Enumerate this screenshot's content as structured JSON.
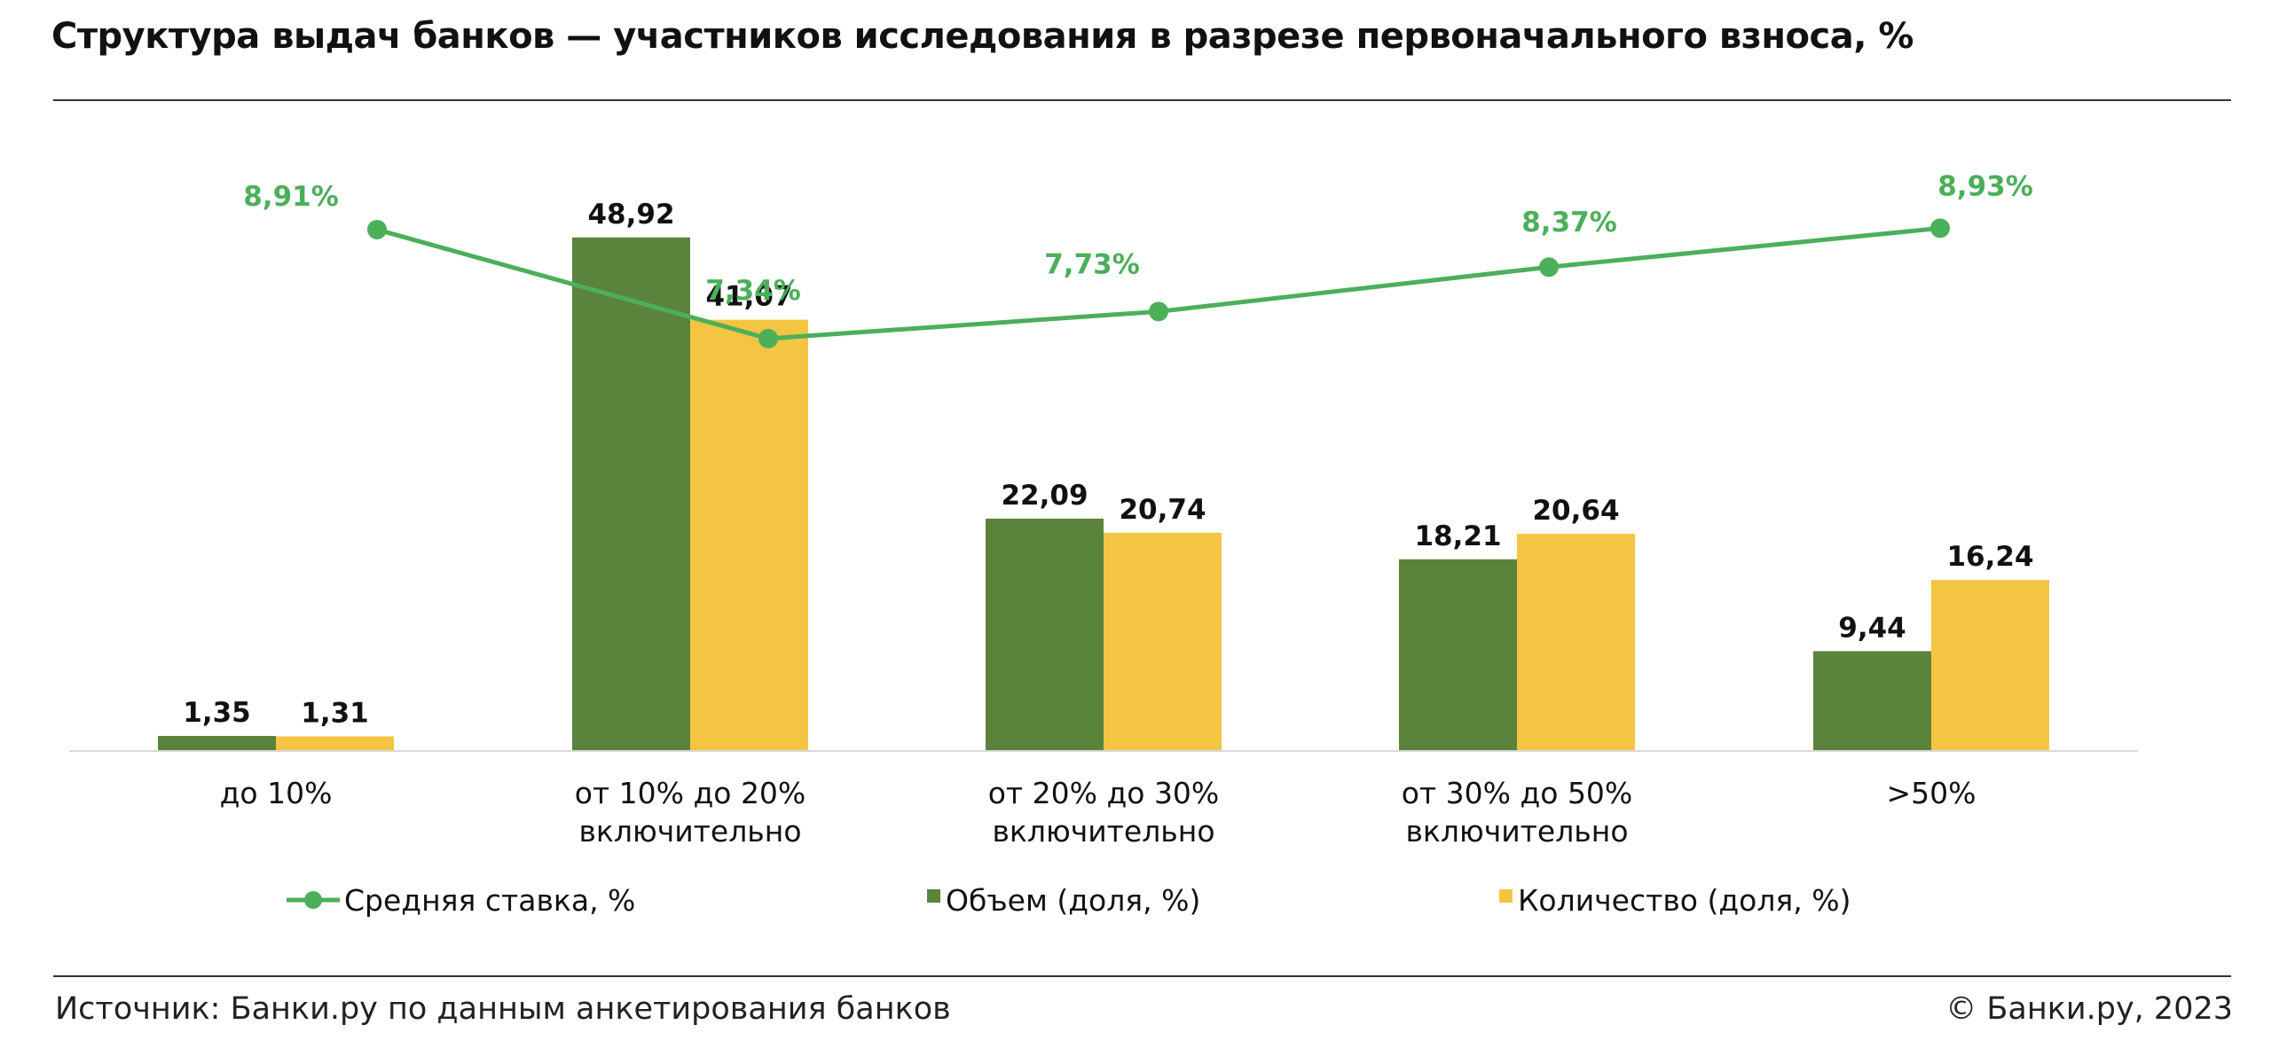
{
  "title": "Структура выдач банков — участников исследования в разрезе первоначального взноса, %",
  "source": "Источник: Банки.ру по данным анкетирования банков",
  "copyright": "© Банки.ру, 2023",
  "colors": {
    "volume": "#5a833c",
    "count": "#f4c542",
    "rate": "#4caf5a",
    "text": "#111111"
  },
  "chart_data": {
    "type": "bar",
    "categories": [
      [
        "до 10%"
      ],
      [
        "от 10% до 20%",
        "включительно"
      ],
      [
        "от 20% до 30%",
        "включительно"
      ],
      [
        "от 30% до 50%",
        "включительно"
      ],
      [
        ">50%"
      ]
    ],
    "series": [
      {
        "name": "Объем (доля, %)",
        "kind": "bar",
        "values": [
          1.35,
          48.92,
          22.09,
          18.21,
          9.44
        ],
        "labels": [
          "1,35",
          "48,92",
          "22,09",
          "18,21",
          "9,44"
        ]
      },
      {
        "name": "Количество (доля, %)",
        "kind": "bar",
        "values": [
          1.31,
          41.07,
          20.74,
          20.64,
          16.24
        ],
        "labels": [
          "1,31",
          "41,07",
          "20,74",
          "20,64",
          "16,24"
        ]
      },
      {
        "name": "Средняя ставка, %",
        "kind": "line",
        "values": [
          8.91,
          7.34,
          7.73,
          8.37,
          8.93
        ],
        "labels": [
          "8,91%",
          "7,34%",
          "7,73%",
          "8,37%",
          "8,93%"
        ]
      }
    ],
    "legend_position": "bottom",
    "grid": false
  }
}
